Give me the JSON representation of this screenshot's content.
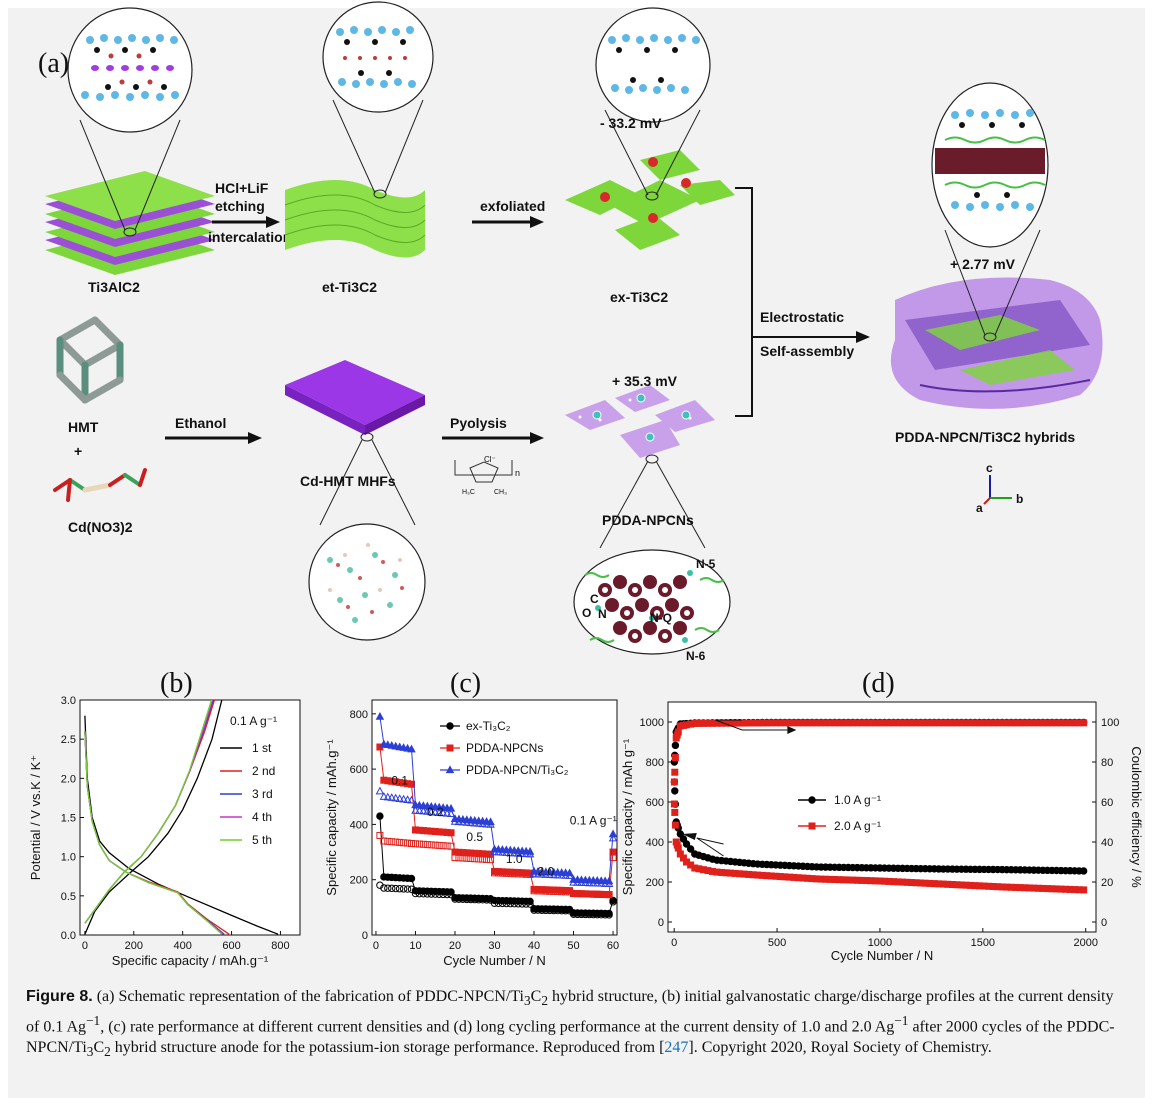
{
  "schematic": {
    "panel_label": "(a)",
    "ti3alc2": "Ti3AlC2",
    "step1_line1": "HCl+LiF",
    "step1_line2": "etching",
    "step1_line3": "intercalation",
    "et_ti3c2": "et-Ti3C2",
    "step2": "exfoliated",
    "zeta_ex": "- 33.2 mV",
    "ex_ti3c2": "ex-Ti3C2",
    "electrostatic_line1": "Electrostatic",
    "electrostatic_line2": "Self-assembly",
    "zeta_hybrid": "+ 2.77 mV",
    "hybrid_label": "PDDA-NPCN/Ti3C2 hybrids",
    "hmt": "HMT",
    "plus": "+",
    "cdno3": "Cd(NO3)2",
    "ethanol": "Ethanol",
    "cd_hmt": "Cd-HMT MHFs",
    "pyolysis": "Pyolysis",
    "pdda_cl": "Cl⁻",
    "pdda_n": "n",
    "pdda_h3c": "H₃C",
    "pdda_ch3": "CH₃",
    "zeta_pdda": "+ 35.3 mV",
    "pdda_npcns": "PDDA-NPCNs",
    "n5": "N-5",
    "nq": "N-Q",
    "n6": "N-6",
    "c": "C",
    "n": "N",
    "o": "O",
    "axis_c": "c",
    "axis_a": "a",
    "axis_b": "b"
  },
  "panel_titles": {
    "b": "(b)",
    "c": "(c)",
    "d": "(d)"
  },
  "chart_data": [
    {
      "id": "b",
      "type": "line",
      "xlabel": "Specific capacity / mAh.g⁻¹",
      "ylabel": "Potential / V vs.K / K⁺",
      "xlim": [
        -20,
        880
      ],
      "ylim": [
        0.0,
        3.0
      ],
      "xticks": [
        0,
        200,
        400,
        600,
        800
      ],
      "yticks": [
        0.0,
        0.5,
        1.0,
        1.5,
        2.0,
        2.5,
        3.0
      ],
      "legend_title": "0.1 A g⁻¹",
      "legend_position": "top-right",
      "series": [
        {
          "name": "1 st",
          "color": "#000000",
          "discharge": [
            [
              0,
              2.8
            ],
            [
              10,
              2.0
            ],
            [
              30,
              1.5
            ],
            [
              60,
              1.2
            ],
            [
              100,
              1.05
            ],
            [
              180,
              0.85
            ],
            [
              300,
              0.65
            ],
            [
              450,
              0.45
            ],
            [
              600,
              0.25
            ],
            [
              700,
              0.12
            ],
            [
              790,
              0.01
            ]
          ],
          "charge": [
            [
              0,
              0.01
            ],
            [
              40,
              0.3
            ],
            [
              100,
              0.55
            ],
            [
              180,
              0.78
            ],
            [
              260,
              1.0
            ],
            [
              340,
              1.3
            ],
            [
              400,
              1.6
            ],
            [
              460,
              2.0
            ],
            [
              520,
              2.5
            ],
            [
              560,
              3.0
            ]
          ]
        },
        {
          "name": "2 nd",
          "color": "#e0201b",
          "discharge": [
            [
              0,
              2.6
            ],
            [
              10,
              1.9
            ],
            [
              30,
              1.45
            ],
            [
              60,
              1.15
            ],
            [
              100,
              0.95
            ],
            [
              170,
              0.8
            ],
            [
              260,
              0.68
            ],
            [
              380,
              0.55
            ],
            [
              420,
              0.4
            ],
            [
              500,
              0.2
            ],
            [
              590,
              0.01
            ]
          ],
          "charge": [
            [
              0,
              0.15
            ],
            [
              40,
              0.32
            ],
            [
              100,
              0.58
            ],
            [
              160,
              0.8
            ],
            [
              230,
              1.0
            ],
            [
              300,
              1.3
            ],
            [
              370,
              1.65
            ],
            [
              430,
              2.1
            ],
            [
              490,
              2.6
            ],
            [
              530,
              3.0
            ]
          ]
        },
        {
          "name": "3 rd",
          "color": "#2c3fd6",
          "discharge": [
            [
              0,
              2.6
            ],
            [
              10,
              1.9
            ],
            [
              30,
              1.45
            ],
            [
              60,
              1.15
            ],
            [
              100,
              0.95
            ],
            [
              170,
              0.8
            ],
            [
              260,
              0.67
            ],
            [
              380,
              0.54
            ],
            [
              420,
              0.39
            ],
            [
              500,
              0.19
            ],
            [
              570,
              0.01
            ]
          ],
          "charge": [
            [
              0,
              0.15
            ],
            [
              40,
              0.32
            ],
            [
              100,
              0.58
            ],
            [
              160,
              0.8
            ],
            [
              230,
              1.0
            ],
            [
              300,
              1.3
            ],
            [
              370,
              1.65
            ],
            [
              430,
              2.1
            ],
            [
              485,
              2.6
            ],
            [
              525,
              3.0
            ]
          ]
        },
        {
          "name": "4 th",
          "color": "#cc33cc",
          "discharge": [
            [
              0,
              2.6
            ],
            [
              10,
              1.9
            ],
            [
              30,
              1.45
            ],
            [
              60,
              1.15
            ],
            [
              100,
              0.95
            ],
            [
              170,
              0.8
            ],
            [
              260,
              0.67
            ],
            [
              380,
              0.54
            ],
            [
              420,
              0.39
            ],
            [
              500,
              0.18
            ],
            [
              565,
              0.01
            ]
          ],
          "charge": [
            [
              0,
              0.15
            ],
            [
              40,
              0.32
            ],
            [
              100,
              0.58
            ],
            [
              160,
              0.8
            ],
            [
              230,
              1.0
            ],
            [
              300,
              1.3
            ],
            [
              370,
              1.65
            ],
            [
              430,
              2.1
            ],
            [
              482,
              2.6
            ],
            [
              522,
              3.0
            ]
          ]
        },
        {
          "name": "5 th",
          "color": "#6ed12a",
          "discharge": [
            [
              0,
              2.6
            ],
            [
              10,
              1.9
            ],
            [
              30,
              1.45
            ],
            [
              60,
              1.15
            ],
            [
              100,
              0.95
            ],
            [
              170,
              0.8
            ],
            [
              260,
              0.67
            ],
            [
              380,
              0.54
            ],
            [
              420,
              0.39
            ],
            [
              500,
              0.18
            ],
            [
              560,
              0.01
            ]
          ],
          "charge": [
            [
              0,
              0.15
            ],
            [
              40,
              0.32
            ],
            [
              100,
              0.58
            ],
            [
              160,
              0.8
            ],
            [
              230,
              1.0
            ],
            [
              300,
              1.3
            ],
            [
              370,
              1.65
            ],
            [
              428,
              2.1
            ],
            [
              478,
              2.6
            ],
            [
              518,
              3.0
            ]
          ]
        }
      ]
    },
    {
      "id": "c",
      "type": "scatter",
      "xlabel": "Cycle Number / N",
      "ylabel": "Specific capacity / mAh.g⁻¹",
      "xlim": [
        -1,
        61
      ],
      "ylim": [
        0,
        850
      ],
      "xticks": [
        0,
        10,
        20,
        30,
        40,
        50,
        60
      ],
      "yticks": [
        0,
        200,
        400,
        600,
        800
      ],
      "legend_position": "top-right",
      "rate_labels": [
        {
          "text": "0.1",
          "x": 6,
          "y": 545
        },
        {
          "text": "0.2",
          "x": 15,
          "y": 430
        },
        {
          "text": "0.5",
          "x": 25,
          "y": 340
        },
        {
          "text": "1.0",
          "x": 35,
          "y": 260
        },
        {
          "text": "2.0",
          "x": 43,
          "y": 215
        },
        {
          "text": "0.1 A g⁻¹",
          "x": 55,
          "y": 400
        }
      ],
      "series": [
        {
          "name": "ex-Ti₃C₂",
          "color": "#000000",
          "marker": "circle",
          "segments": [
            [
              1,
              430,
              180
            ],
            [
              2,
              210,
              170
            ],
            [
              10,
              160,
              150
            ],
            [
              20,
              135,
              130
            ],
            [
              30,
              125,
              115
            ],
            [
              40,
              95,
              90
            ],
            [
              50,
              80,
              75
            ],
            [
              60,
              125,
              120
            ]
          ]
        },
        {
          "name": "PDDA-NPCNs",
          "color": "#e0201b",
          "marker": "square",
          "segments": [
            [
              1,
              680,
              360
            ],
            [
              2,
              560,
              340
            ],
            [
              10,
              380,
              330
            ],
            [
              20,
              300,
              280
            ],
            [
              30,
              230,
              225
            ],
            [
              40,
              165,
              160
            ],
            [
              50,
              150,
              150
            ],
            [
              60,
              300,
              280
            ]
          ]
        },
        {
          "name": "PDDA-NPCN/Ti₃C₂",
          "color": "#2c3fd6",
          "marker": "triangle",
          "segments": [
            [
              1,
              790,
              520
            ],
            [
              2,
              690,
              500
            ],
            [
              10,
              470,
              450
            ],
            [
              20,
              420,
              410
            ],
            [
              30,
              310,
              300
            ],
            [
              40,
              230,
              220
            ],
            [
              50,
              200,
              190
            ],
            [
              60,
              365,
              350
            ]
          ]
        }
      ]
    },
    {
      "id": "d",
      "type": "scatter",
      "xlabel": "Cycle Number / N",
      "ylabel": "Specific capacity / mAh g⁻¹",
      "y2label": "Coulombic efficiency / %",
      "xlim": [
        -30,
        2050
      ],
      "ylim": [
        -50,
        1100
      ],
      "y2lim": [
        -5,
        110
      ],
      "xticks": [
        0,
        500,
        1000,
        1500,
        2000
      ],
      "yticks": [
        0,
        200,
        400,
        600,
        800,
        1000
      ],
      "y2ticks": [
        0,
        20,
        40,
        60,
        80,
        100
      ],
      "legend_position": "center",
      "series": [
        {
          "name": "1.0 A g⁻¹",
          "color": "#000000",
          "marker": "circle",
          "capacity": [
            [
              1,
              700
            ],
            [
              10,
              500
            ],
            [
              30,
              440
            ],
            [
              60,
              390
            ],
            [
              100,
              340
            ],
            [
              200,
              310
            ],
            [
              400,
              290
            ],
            [
              700,
              275
            ],
            [
              1000,
              270
            ],
            [
              1300,
              265
            ],
            [
              1600,
              262
            ],
            [
              2000,
              255
            ]
          ],
          "efficiency": [
            [
              1,
              80
            ],
            [
              10,
              95
            ],
            [
              30,
              99
            ],
            [
              100,
              99.5
            ],
            [
              500,
              99.8
            ],
            [
              1000,
              99.8
            ],
            [
              1500,
              99.8
            ],
            [
              2000,
              99.8
            ]
          ]
        },
        {
          "name": "2.0 A g⁻¹",
          "color": "#e0201b",
          "marker": "square",
          "capacity": [
            [
              1,
              590
            ],
            [
              10,
              400
            ],
            [
              30,
              340
            ],
            [
              60,
              300
            ],
            [
              100,
              270
            ],
            [
              200,
              250
            ],
            [
              400,
              235
            ],
            [
              700,
              215
            ],
            [
              1000,
              205
            ],
            [
              1300,
              190
            ],
            [
              1600,
              175
            ],
            [
              2000,
              160
            ]
          ],
          "efficiency": [
            [
              1,
              70
            ],
            [
              10,
              92
            ],
            [
              30,
              98
            ],
            [
              100,
              99.3
            ],
            [
              500,
              99.6
            ],
            [
              1000,
              99.6
            ],
            [
              1500,
              99.6
            ],
            [
              2000,
              99.6
            ]
          ]
        }
      ]
    }
  ],
  "caption": {
    "label": "Figure 8.",
    "text1": " (a) Schematic representation of the fabrication of PDDC-NPCN/Ti",
    "sub1": "3",
    "text2": "C",
    "sub2": "2",
    "text3": " hybrid structure, (b) initial galvanostatic charge/discharge profiles at the current density of 0.1 Ag",
    "sup1": "−1",
    "text4": ", (c) rate performance at different current densities and (d) long cycling performance at the current density of 1.0 and 2.0 Ag",
    "sup2": "−1",
    "text5": " after 2000 cycles of the PDDC-NPCN/Ti",
    "sub3": "3",
    "text6": "C",
    "sub4": "2",
    "text7": " hybrid structure anode for the potassium-ion storage performance. Reproduced from [",
    "ref": "247",
    "text8": "]. Copyright 2020, Royal Society of Chemistry."
  }
}
